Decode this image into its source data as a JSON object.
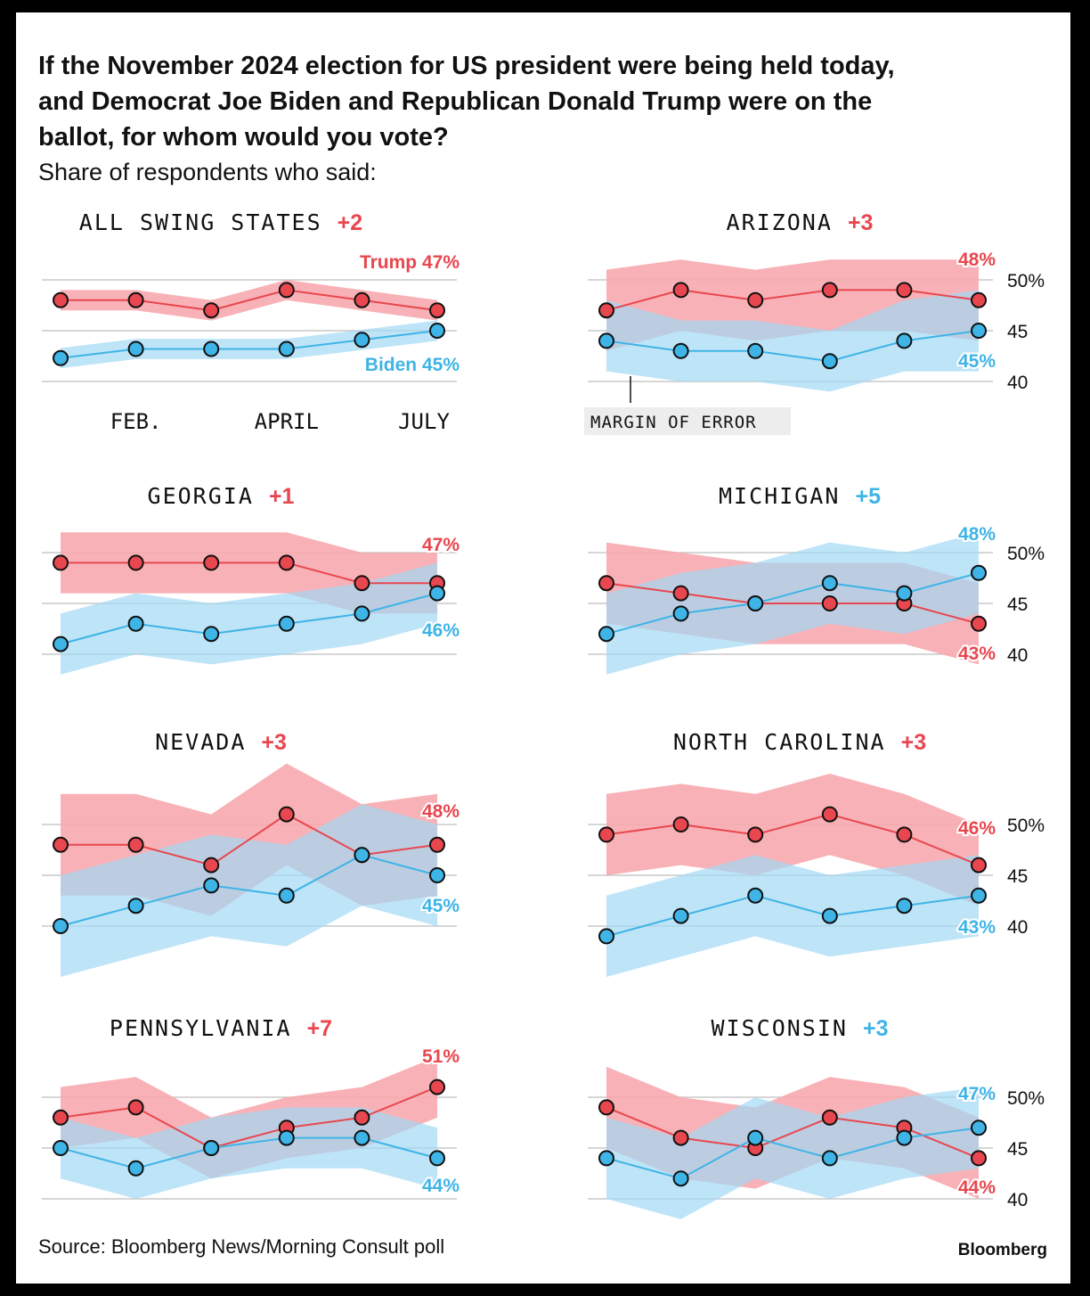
{
  "title": "If the November 2024 election for US president were being held today, and Democrat Joe Biden and Republican Donald Trump were on the ballot, for whom would you vote?",
  "title_lines": [
    "If the November 2024 election for US president were being held today,",
    "and Democrat Joe Biden and Republican Donald Trump were on the",
    "ballot, for whom would you vote?"
  ],
  "subtitle": "Share of respondents who said:",
  "source": "Source: Bloomberg News/Morning Consult poll",
  "brand": "Bloomberg",
  "colors": {
    "trump": "#e8474f",
    "trump_band": "#f7a8ae",
    "biden": "#3fb4e6",
    "biden_band": "#a3d9f5",
    "grid": "#bdbdbd"
  },
  "labels": {
    "trump_all": "Trump 47%",
    "biden_all": "Biden 45%",
    "months": [
      "FEB.",
      "APRIL",
      "JULY"
    ],
    "margin_of_error": "MARGIN OF ERROR",
    "y_ticks": [
      "50%",
      "45",
      "40"
    ]
  },
  "chart_data": [
    {
      "type": "line",
      "name": "ALL SWING STATES",
      "margin": "+2",
      "leader": "trump",
      "ylim": [
        40,
        50
      ],
      "series": [
        {
          "name": "Trump",
          "values": [
            48,
            48,
            47,
            49,
            48,
            47
          ],
          "band": [
            [
              47,
              49
            ],
            [
              47,
              49
            ],
            [
              46,
              48
            ],
            [
              48,
              50
            ],
            [
              47,
              49
            ],
            [
              46,
              48
            ]
          ],
          "end_label": "Trump 47%"
        },
        {
          "name": "Biden",
          "values": [
            42.3,
            43.2,
            43.2,
            43.2,
            44.1,
            45
          ],
          "band": [
            [
              41.3,
              43.3
            ],
            [
              42.2,
              44.2
            ],
            [
              42.2,
              44.2
            ],
            [
              42.2,
              44.2
            ],
            [
              43.1,
              45.1
            ],
            [
              44,
              46
            ]
          ],
          "end_label": "Biden 45%"
        }
      ]
    },
    {
      "type": "line",
      "name": "ARIZONA",
      "margin": "+3",
      "leader": "trump",
      "ylim": [
        40,
        50
      ],
      "series": [
        {
          "name": "Trump",
          "values": [
            47,
            49,
            48,
            49,
            49,
            48
          ],
          "band": [
            [
              43,
              51
            ],
            [
              45,
              52
            ],
            [
              44,
              51
            ],
            [
              45,
              52
            ],
            [
              45,
              52
            ],
            [
              44,
              52
            ]
          ],
          "end_label": "48%"
        },
        {
          "name": "Biden",
          "values": [
            44,
            43,
            43,
            42,
            44,
            45
          ],
          "band": [
            [
              41,
              48
            ],
            [
              40,
              46
            ],
            [
              40,
              46
            ],
            [
              39,
              45
            ],
            [
              41,
              48
            ],
            [
              41,
              49
            ]
          ],
          "end_label": "45%"
        }
      ]
    },
    {
      "type": "line",
      "name": "GEORGIA",
      "margin": "+1",
      "leader": "trump",
      "ylim": [
        40,
        50
      ],
      "series": [
        {
          "name": "Trump",
          "values": [
            49,
            49,
            49,
            49,
            47,
            47
          ],
          "band": [
            [
              46,
              52
            ],
            [
              46,
              52
            ],
            [
              46,
              52
            ],
            [
              46,
              52
            ],
            [
              44,
              50
            ],
            [
              44,
              50
            ]
          ],
          "end_label": "47%"
        },
        {
          "name": "Biden",
          "values": [
            41,
            43,
            42,
            43,
            44,
            46
          ],
          "band": [
            [
              38,
              44
            ],
            [
              40,
              46
            ],
            [
              39,
              45
            ],
            [
              40,
              46
            ],
            [
              41,
              47
            ],
            [
              43,
              49
            ]
          ],
          "end_label": "46%"
        }
      ]
    },
    {
      "type": "line",
      "name": "MICHIGAN",
      "margin": "+5",
      "leader": "biden",
      "ylim": [
        40,
        50
      ],
      "series": [
        {
          "name": "Trump",
          "values": [
            47,
            46,
            45,
            45,
            45,
            43
          ],
          "band": [
            [
              43,
              51
            ],
            [
              42,
              50
            ],
            [
              41,
              49
            ],
            [
              41,
              49
            ],
            [
              41,
              49
            ],
            [
              39,
              47
            ]
          ],
          "end_label": "43%"
        },
        {
          "name": "Biden",
          "values": [
            42,
            44,
            45,
            47,
            46,
            48
          ],
          "band": [
            [
              38,
              46
            ],
            [
              40,
              48
            ],
            [
              41,
              49
            ],
            [
              43,
              51
            ],
            [
              42,
              50
            ],
            [
              44,
              52
            ]
          ],
          "end_label": "48%"
        }
      ]
    },
    {
      "type": "line",
      "name": "NEVADA",
      "margin": "+3",
      "leader": "trump",
      "ylim": [
        40,
        50
      ],
      "series": [
        {
          "name": "Trump",
          "values": [
            48,
            48,
            46,
            51,
            47,
            48
          ],
          "band": [
            [
              43,
              53
            ],
            [
              43,
              53
            ],
            [
              41,
              51
            ],
            [
              46,
              56
            ],
            [
              42,
              52
            ],
            [
              43,
              53
            ]
          ],
          "end_label": "48%"
        },
        {
          "name": "Biden",
          "values": [
            40,
            42,
            44,
            43,
            47,
            45
          ],
          "band": [
            [
              35,
              45
            ],
            [
              37,
              47
            ],
            [
              39,
              49
            ],
            [
              38,
              48
            ],
            [
              42,
              52
            ],
            [
              40,
              50
            ]
          ],
          "end_label": "45%"
        }
      ]
    },
    {
      "type": "line",
      "name": "NORTH CAROLINA",
      "margin": "+3",
      "leader": "trump",
      "ylim": [
        40,
        50
      ],
      "series": [
        {
          "name": "Trump",
          "values": [
            49,
            50,
            49,
            51,
            49,
            46
          ],
          "band": [
            [
              45,
              53
            ],
            [
              46,
              54
            ],
            [
              45,
              53
            ],
            [
              47,
              55
            ],
            [
              45,
              53
            ],
            [
              42,
              50
            ]
          ],
          "end_label": "46%"
        },
        {
          "name": "Biden",
          "values": [
            39,
            41,
            43,
            41,
            42,
            43
          ],
          "band": [
            [
              35,
              43
            ],
            [
              37,
              45
            ],
            [
              39,
              47
            ],
            [
              37,
              45
            ],
            [
              38,
              46
            ],
            [
              39,
              47
            ]
          ],
          "end_label": "43%"
        }
      ]
    },
    {
      "type": "line",
      "name": "PENNSYLVANIA",
      "margin": "+7",
      "leader": "trump",
      "ylim": [
        40,
        50
      ],
      "series": [
        {
          "name": "Trump",
          "values": [
            48,
            49,
            45,
            47,
            48,
            51
          ],
          "band": [
            [
              45,
              51
            ],
            [
              46,
              52
            ],
            [
              42,
              48
            ],
            [
              44,
              50
            ],
            [
              45,
              51
            ],
            [
              48,
              54
            ]
          ],
          "end_label": "51%"
        },
        {
          "name": "Biden",
          "values": [
            45,
            43,
            45,
            46,
            46,
            44
          ],
          "band": [
            [
              42,
              48
            ],
            [
              40,
              46
            ],
            [
              42,
              48
            ],
            [
              43,
              49
            ],
            [
              43,
              49
            ],
            [
              41,
              47
            ]
          ],
          "end_label": "44%"
        }
      ]
    },
    {
      "type": "line",
      "name": "WISCONSIN",
      "margin": "+3",
      "leader": "biden",
      "ylim": [
        40,
        50
      ],
      "series": [
        {
          "name": "Trump",
          "values": [
            49,
            46,
            45,
            48,
            47,
            44
          ],
          "band": [
            [
              45,
              53
            ],
            [
              42,
              50
            ],
            [
              41,
              49
            ],
            [
              44,
              52
            ],
            [
              43,
              51
            ],
            [
              40,
              48
            ]
          ],
          "end_label": "44%"
        },
        {
          "name": "Biden",
          "values": [
            44,
            42,
            46,
            44,
            46,
            47
          ],
          "band": [
            [
              40,
              48
            ],
            [
              38,
              46
            ],
            [
              42,
              50
            ],
            [
              40,
              48
            ],
            [
              42,
              50
            ],
            [
              43,
              51
            ]
          ],
          "end_label": "47%"
        }
      ]
    }
  ]
}
